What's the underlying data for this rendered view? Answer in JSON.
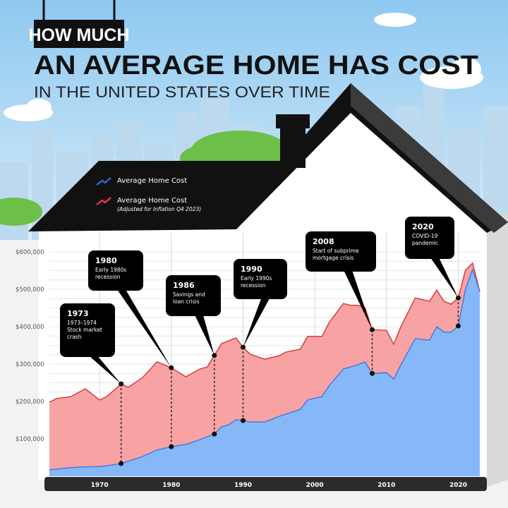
{
  "title": {
    "line1": "HOW MUCH",
    "line2": "AN AVERAGE HOME HAS COST",
    "line3": "IN THE UNITED STATES OVER TIME"
  },
  "legend": {
    "items": [
      {
        "label": "Average Home Cost",
        "sub": "",
        "color": "#3a5fd0"
      },
      {
        "label": "Average Home Cost",
        "sub": "(Adjusted for Inflation Q4 2023)",
        "color": "#e0353f"
      }
    ]
  },
  "colors": {
    "sky": "#a8d4f2",
    "nominal_fill": "#86b8f7",
    "adjusted_fill": "#f7a3a3",
    "nominal_line": "#4a78e0",
    "adjusted_line": "#d93b3f"
  },
  "chart_data": {
    "type": "area",
    "title": "",
    "xlabel": "",
    "ylabel": "",
    "xlim": [
      1963,
      2023
    ],
    "ylim": [
      0,
      600000
    ],
    "grid": true,
    "legend_position": "top-left",
    "x_ticks": [
      "1970",
      "1980",
      "1990",
      "2000",
      "2010",
      "2020"
    ],
    "y_ticks": [
      "$100,000",
      "$200,000",
      "$300,000",
      "$400,000",
      "$500,000",
      "$600,000"
    ],
    "series": [
      {
        "name": "Average Home Cost (Adjusted for Inflation Q4 2023)",
        "x": [
          1963,
          1964,
          1966,
          1968,
          1970,
          1971,
          1973,
          1974,
          1976,
          1978,
          1980,
          1982,
          1984,
          1985,
          1986,
          1987,
          1988,
          1989,
          1990,
          1991,
          1993,
          1995,
          1996,
          1998,
          1999,
          2001,
          2002,
          2004,
          2005,
          2006,
          2007,
          2008,
          2010,
          2011,
          2012,
          2014,
          2016,
          2017,
          2018,
          2019,
          2020,
          2021,
          2022,
          2023
        ],
        "values": [
          198000,
          208000,
          213000,
          234000,
          204000,
          213000,
          247000,
          238000,
          264000,
          306000,
          290000,
          266000,
          287000,
          292000,
          323000,
          355000,
          362000,
          370000,
          345000,
          326000,
          313000,
          322000,
          332000,
          340000,
          374000,
          374000,
          411000,
          462000,
          457000,
          457000,
          451000,
          392000,
          390000,
          353000,
          400000,
          477000,
          468000,
          498000,
          468000,
          460000,
          477000,
          551000,
          570000,
          494000
        ]
      },
      {
        "name": "Average Home Cost",
        "x": [
          1963,
          1966,
          1968,
          1970,
          1971,
          1973,
          1976,
          1978,
          1980,
          1982,
          1984,
          1986,
          1987,
          1988,
          1989,
          1990,
          1991,
          1993,
          1995,
          1998,
          1999,
          2001,
          2002,
          2004,
          2006,
          2007,
          2008,
          2010,
          2011,
          2012,
          2014,
          2016,
          2017,
          2018,
          2019,
          2020,
          2021,
          2022,
          2023
        ],
        "values": [
          17000,
          23000,
          25000,
          26000,
          28000,
          34000,
          53000,
          70000,
          79000,
          85000,
          98000,
          113000,
          132000,
          138000,
          151000,
          149000,
          145000,
          145000,
          160000,
          179000,
          204000,
          213000,
          242000,
          287000,
          298000,
          306000,
          275000,
          277000,
          260000,
          298000,
          368000,
          364000,
          400000,
          385000,
          385000,
          402000,
          500000,
          553000,
          494000
        ]
      }
    ],
    "annotations": [
      {
        "year": "1973",
        "text": [
          "1973–1974",
          "Stock market",
          "crash"
        ],
        "x": 1973,
        "adjusted": 247000,
        "nominal": 34000
      },
      {
        "year": "1980",
        "text": [
          "Early 1980s",
          "recession"
        ],
        "x": 1980,
        "adjusted": 290000,
        "nominal": 79000
      },
      {
        "year": "1986",
        "text": [
          "Savings and",
          "loan crisis"
        ],
        "x": 1986,
        "adjusted": 323000,
        "nominal": 113000
      },
      {
        "year": "1990",
        "text": [
          "Early 1990s",
          "recession"
        ],
        "x": 1990,
        "adjusted": 345000,
        "nominal": 149000
      },
      {
        "year": "2008",
        "text": [
          "Start of subprime",
          "mortgage crisis"
        ],
        "x": 2008,
        "adjusted": 392000,
        "nominal": 275000
      },
      {
        "year": "2020",
        "text": [
          "COVID-19",
          "pandemic"
        ],
        "x": 2020,
        "adjusted": 477000,
        "nominal": 402000
      }
    ]
  }
}
